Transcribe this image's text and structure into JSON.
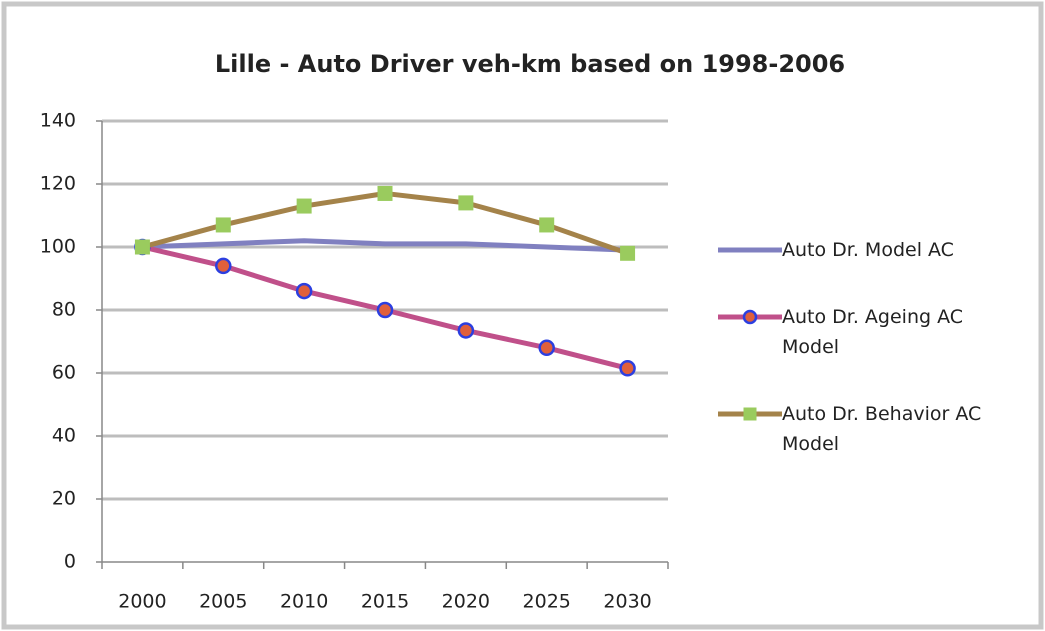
{
  "chart_data": {
    "type": "line",
    "title": "Lille - Auto Driver veh-km based on 1998-2006",
    "categories": [
      "2000",
      "2005",
      "2010",
      "2015",
      "2020",
      "2025",
      "2030"
    ],
    "series": [
      {
        "name": "Auto Dr. Model AC",
        "color": "#8080c0",
        "marker": "none",
        "values": [
          100,
          101,
          102,
          101,
          101,
          100,
          99
        ]
      },
      {
        "name": "Auto Dr. Ageing AC Model",
        "color": "#c0508a",
        "marker": "circle",
        "marker_color": "#e0603c",
        "marker_edge": "#2c3fe0",
        "values": [
          100,
          94,
          86,
          80,
          73.5,
          68,
          61.5
        ]
      },
      {
        "name": "Auto Dr. Behavior AC Model",
        "color": "#a4834a",
        "marker": "square",
        "marker_color": "#9acb5e",
        "marker_edge": "#9acb5e",
        "values": [
          100,
          107,
          113,
          117,
          114,
          107,
          98
        ]
      }
    ],
    "ylim": [
      0,
      140
    ],
    "yticks": [
      0,
      20,
      40,
      60,
      80,
      100,
      120,
      140
    ],
    "grid": true,
    "legend": "right"
  }
}
